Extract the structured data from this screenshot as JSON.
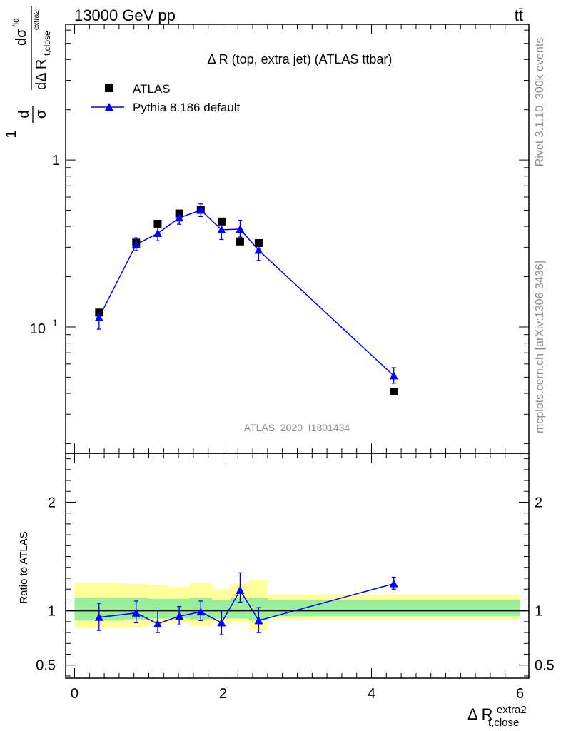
{
  "header": {
    "energy_label": "13000 GeV pp",
    "process_label": "tt̄"
  },
  "side_labels": {
    "rivet": "Rivet 3.1.10,  300k events",
    "source": "mcplots.cern.ch [arXiv:1306.3436]"
  },
  "watermark": "ATLAS_2020_I1801434",
  "chart_data": [
    {
      "type": "scatter",
      "title": "Δ R (top, extra jet) (ATLAS ttbar)",
      "ylabel": "dσ / dΔR_t,close^extra2 (normalized)",
      "xlabel": "Δ R_t,close^extra2",
      "yscale": "log",
      "ylim": [
        0.0175,
        6.5
      ],
      "xlim": [
        -0.12,
        6.12
      ],
      "y_ticks": [
        {
          "value": 1,
          "label": "1"
        },
        {
          "value": 0.1,
          "label": "10−1"
        }
      ],
      "legend_placement": "top-left",
      "legend": [
        "ATLAS",
        "Pythia 8.186 default"
      ],
      "series": [
        {
          "name": "ATLAS",
          "marker": "square",
          "color": "#000000",
          "x": [
            0.33,
            0.83,
            1.12,
            1.41,
            1.7,
            1.98,
            2.23,
            2.48,
            4.3
          ],
          "y": [
            0.122,
            0.32,
            0.415,
            0.478,
            0.505,
            0.428,
            0.325,
            0.318,
            0.041
          ]
        },
        {
          "name": "Pythia 8.186 default",
          "marker": "triangle",
          "color": "#0000ff",
          "x": [
            0.33,
            0.83,
            1.12,
            1.41,
            1.7,
            1.98,
            2.23,
            2.48,
            4.3
          ],
          "y": [
            0.114,
            0.312,
            0.363,
            0.45,
            0.5,
            0.382,
            0.385,
            0.288,
            0.051
          ],
          "yerr_low": [
            0.017,
            0.025,
            0.035,
            0.038,
            0.042,
            0.048,
            0.04,
            0.038,
            0.005
          ],
          "yerr_high": [
            0.012,
            0.03,
            0.035,
            0.035,
            0.045,
            0.04,
            0.05,
            0.03,
            0.006
          ]
        }
      ]
    },
    {
      "type": "scatter",
      "ylabel": "Ratio to ATLAS",
      "xlabel": "Δ R_t,close^extra2",
      "ylim": [
        0.38,
        2.45
      ],
      "xlim": [
        -0.12,
        6.12
      ],
      "x_ticks": [
        0,
        2,
        4,
        6
      ],
      "y_ticks": [
        0.5,
        1,
        2
      ],
      "reference_line": 1,
      "bands": {
        "edges": [
          0.0,
          0.66,
          1.0,
          1.25,
          1.55,
          1.85,
          2.1,
          2.35,
          2.6,
          6.0
        ],
        "stat_low": [
          0.91,
          0.92,
          0.93,
          0.93,
          0.92,
          0.93,
          0.93,
          0.91,
          0.95
        ],
        "stat_high": [
          1.12,
          1.12,
          1.11,
          1.11,
          1.12,
          1.1,
          1.12,
          1.12,
          1.1
        ],
        "total_low": [
          0.84,
          0.85,
          0.88,
          0.89,
          0.86,
          0.89,
          0.89,
          0.82,
          0.92
        ],
        "total_high": [
          1.26,
          1.25,
          1.24,
          1.22,
          1.26,
          1.2,
          1.25,
          1.28,
          1.15
        ],
        "stat_color": "#99ee99",
        "total_color": "#ffff99"
      },
      "series": [
        {
          "name": "Pythia 8.186 default",
          "color": "#0000ff",
          "x": [
            0.33,
            0.83,
            1.12,
            1.41,
            1.7,
            1.98,
            2.23,
            2.48,
            4.3
          ],
          "y": [
            0.94,
            0.98,
            0.88,
            0.95,
            0.99,
            0.89,
            1.19,
            0.91,
            1.25
          ],
          "yerr_low": [
            0.12,
            0.09,
            0.08,
            0.08,
            0.08,
            0.11,
            0.11,
            0.11,
            0.05
          ],
          "yerr_high": [
            0.13,
            0.11,
            0.12,
            0.09,
            0.1,
            0.11,
            0.16,
            0.12,
            0.06
          ]
        }
      ]
    }
  ]
}
